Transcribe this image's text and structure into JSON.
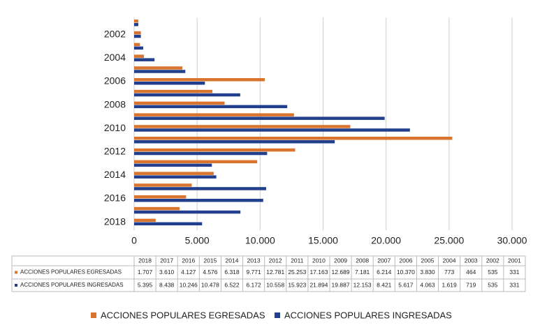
{
  "chart_data": {
    "type": "barh",
    "categories": [
      "2018",
      "2017",
      "2016",
      "2015",
      "2014",
      "2013",
      "2012",
      "2011",
      "2010",
      "2009",
      "2008",
      "2007",
      "2006",
      "2005",
      "2004",
      "2003",
      "2002",
      "2001"
    ],
    "series": [
      {
        "name": "ACCIONES POPULARES EGRESADAS",
        "color": "#d9742f",
        "values": [
          1707,
          3610,
          4127,
          4576,
          6318,
          9771,
          12781,
          25253,
          17163,
          12689,
          7181,
          6214,
          10370,
          3830,
          773,
          464,
          535,
          331
        ],
        "value_labels": [
          "1.707",
          "3.610",
          "4.127",
          "4.576",
          "6.318",
          "9.771",
          "12.781",
          "25.253",
          "17.163",
          "12.689",
          "7.181",
          "6.214",
          "10.370",
          "3.830",
          "773",
          "464",
          "535",
          "331"
        ]
      },
      {
        "name": "ACCIONES POPULARES INGRESADAS",
        "color": "#223f8e",
        "values": [
          5395,
          8438,
          10246,
          10478,
          6522,
          6172,
          10558,
          15923,
          21894,
          19887,
          12153,
          8421,
          5617,
          4063,
          1619,
          719,
          535,
          331
        ],
        "value_labels": [
          "5.395",
          "8.438",
          "10.246",
          "10.478",
          "6.522",
          "6.172",
          "10.558",
          "15.923",
          "21.894",
          "19.887",
          "12.153",
          "8.421",
          "5.617",
          "4.063",
          "1.619",
          "719",
          "535",
          "331"
        ]
      }
    ],
    "xlim": [
      0,
      30000
    ],
    "xticks": [
      0,
      {
        "value": 5000,
        "label": "5.000"
      },
      {
        "value": 10000,
        "label": "10.000"
      },
      {
        "value": 15000,
        "label": "15.000"
      },
      {
        "value": 20000,
        "label": "20.000"
      },
      {
        "value": 25000,
        "label": "25.000"
      },
      {
        "value": 30000,
        "label": "30.000"
      }
    ],
    "grid": true
  }
}
